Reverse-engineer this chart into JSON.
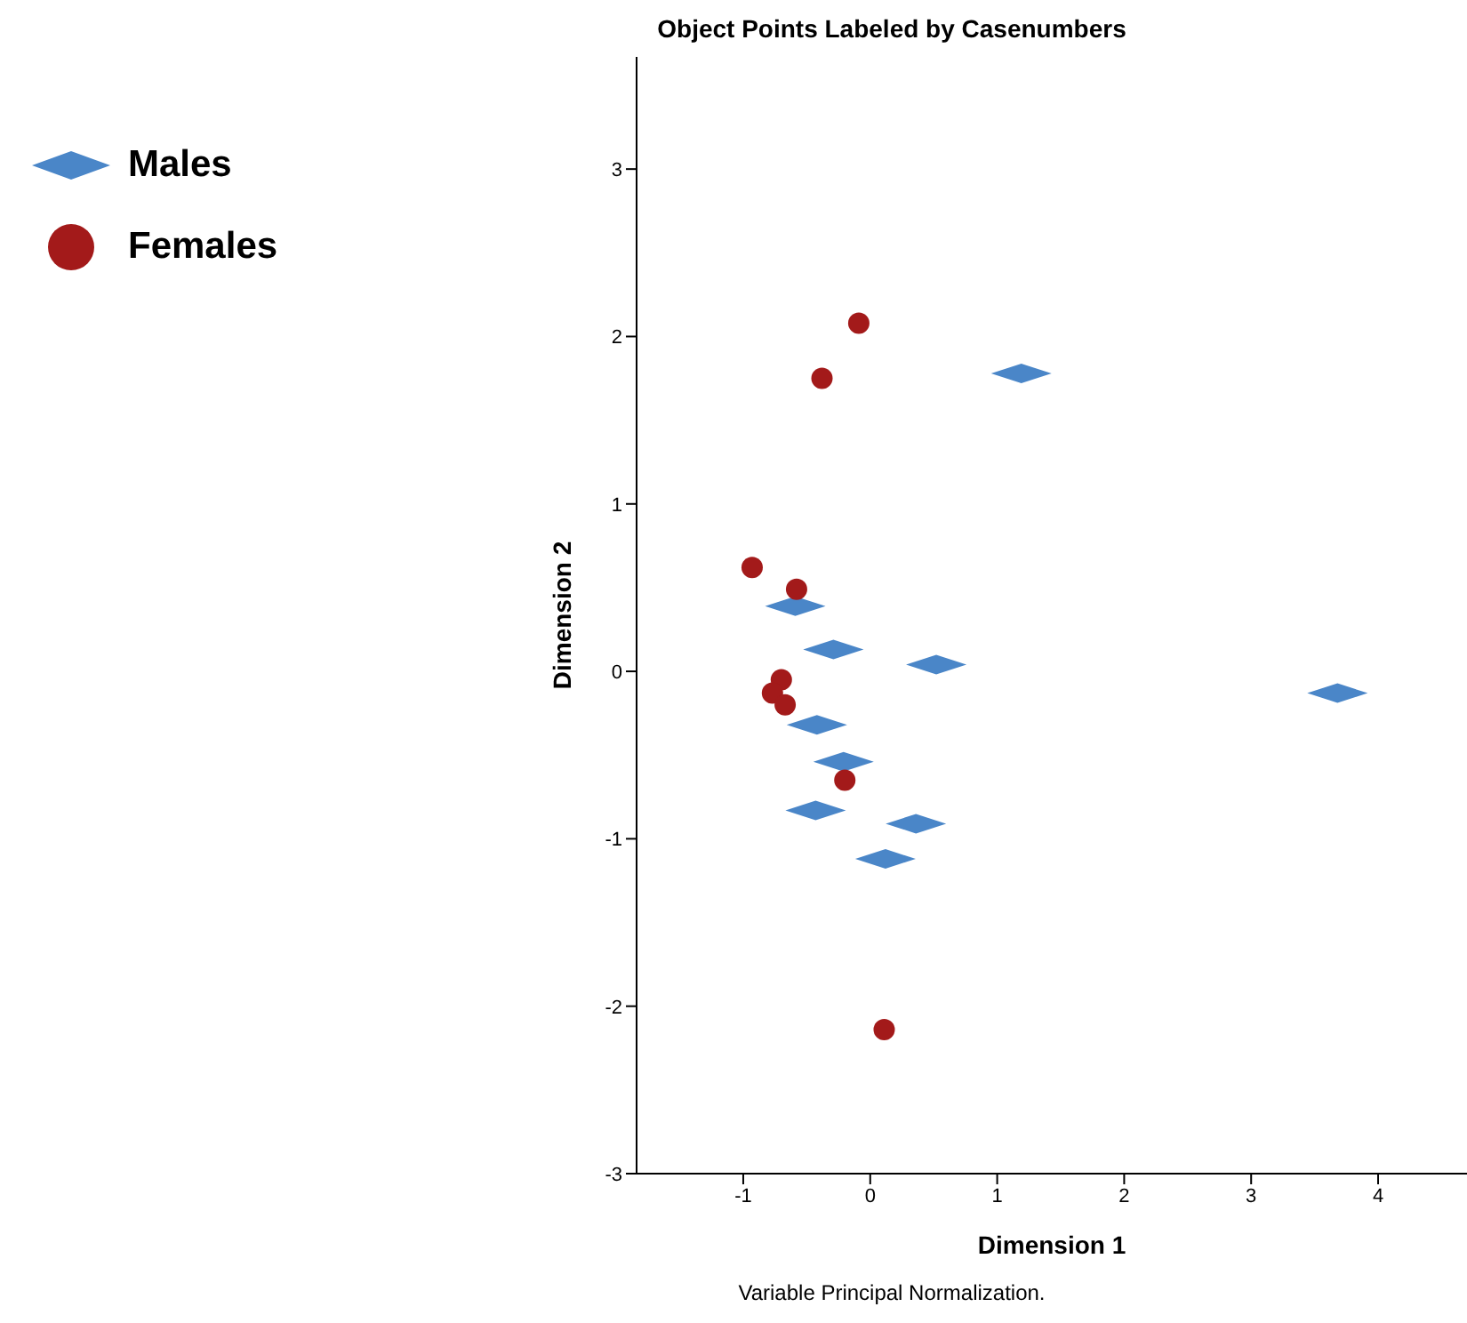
{
  "chart_data": {
    "type": "scatter",
    "title": "Object Points Labeled by Casenumbers",
    "xlabel": "Dimension 1",
    "ylabel": "Dimension 2",
    "annotations": [
      "Variable Principal Normalization."
    ],
    "xlim": [
      -1.84,
      4.7
    ],
    "ylim": [
      -3,
      3.67
    ],
    "xticks": [
      -1,
      0,
      1,
      2,
      3,
      4
    ],
    "yticks": [
      -3,
      -2,
      -1,
      0,
      1,
      2,
      3
    ],
    "grid": false,
    "legend": "top left",
    "series": [
      {
        "name": "Males",
        "color": "#4a86c8",
        "marker": "diamond",
        "x": [
          1.19,
          -0.59,
          -0.29,
          0.52,
          3.68,
          -0.42,
          -0.21,
          -0.43,
          0.36,
          0.12
        ],
        "values": [
          1.78,
          0.39,
          0.13,
          0.04,
          -0.13,
          -0.32,
          -0.54,
          -0.83,
          -0.91,
          -1.12
        ]
      },
      {
        "name": "Females",
        "color": "#a31a1a",
        "marker": "circle",
        "x": [
          -0.09,
          -0.38,
          -0.93,
          -0.58,
          -0.7,
          -0.77,
          -0.67,
          -0.2,
          0.11
        ],
        "values": [
          2.08,
          1.75,
          0.62,
          0.49,
          -0.05,
          -0.13,
          -0.2,
          -0.65,
          -2.14
        ]
      }
    ]
  }
}
